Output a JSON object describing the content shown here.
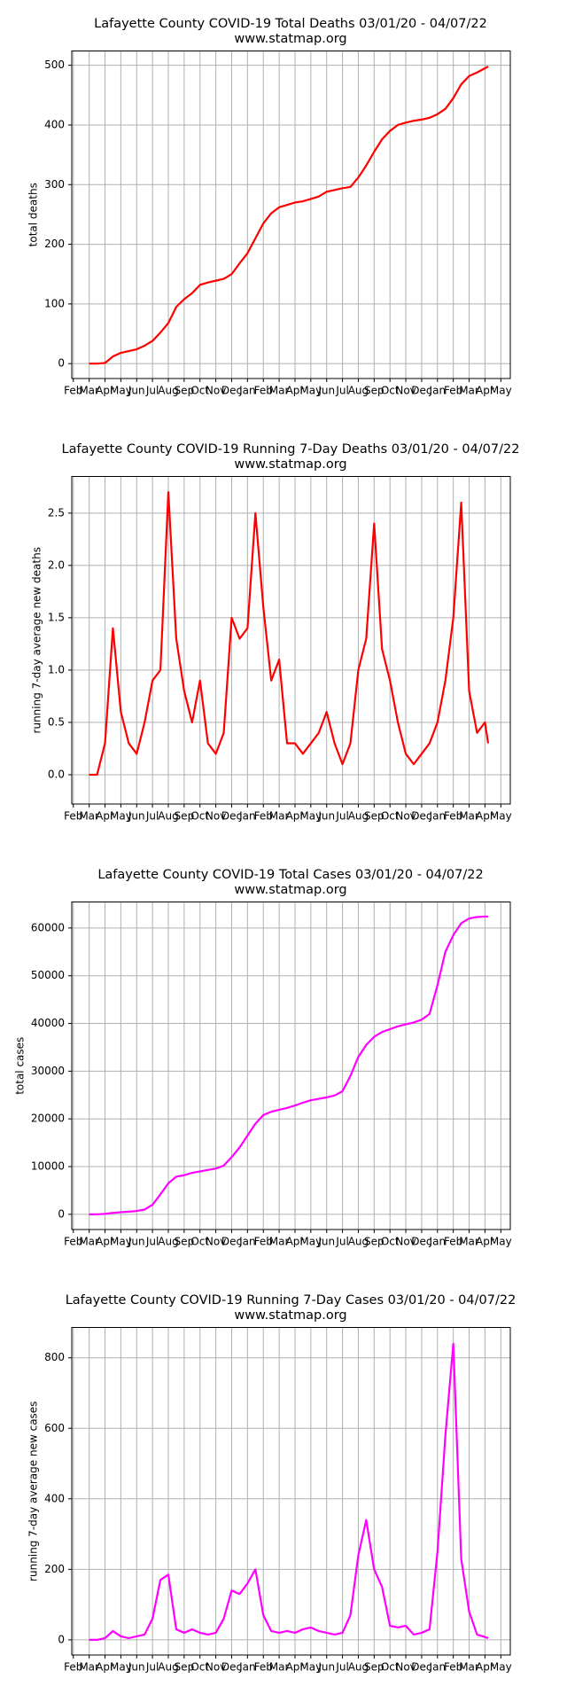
{
  "chart_data": [
    {
      "type": "line",
      "title": "Lafayette County COVID-19 Total Deaths 03/01/20 - 04/07/22",
      "subtitle": "www.statmap.org",
      "y_label": "total deaths",
      "color": "#ff0000",
      "grid": true,
      "x": [
        1,
        1.5,
        2,
        2.5,
        3,
        3.5,
        4,
        4.5,
        5,
        5.5,
        6,
        6.5,
        7,
        7.5,
        8,
        8.5,
        9,
        9.5,
        10,
        10.5,
        11,
        11.5,
        12,
        12.5,
        13,
        13.5,
        14,
        14.5,
        15,
        15.5,
        16,
        16.5,
        17,
        17.5,
        18,
        18.5,
        19,
        19.5,
        20,
        20.5,
        21,
        21.5,
        22,
        22.5,
        23,
        23.5,
        24,
        24.5,
        25,
        25.5,
        26,
        26.2
      ],
      "values": [
        0,
        0,
        1,
        12,
        18,
        21,
        24,
        30,
        38,
        52,
        68,
        95,
        108,
        118,
        132,
        136,
        139,
        142,
        150,
        168,
        185,
        210,
        235,
        252,
        262,
        266,
        270,
        272,
        276,
        280,
        288,
        291,
        294,
        296,
        312,
        332,
        355,
        376,
        390,
        400,
        404,
        407,
        409,
        412,
        418,
        427,
        445,
        468,
        482,
        488,
        495,
        498
      ],
      "xlim": [
        -0.1,
        27.6
      ],
      "ylim": [
        -25,
        524
      ],
      "yticks": [
        0,
        100,
        200,
        300,
        400,
        500
      ],
      "xticks": [
        {
          "value": 0,
          "label": "Feb"
        },
        {
          "value": 1,
          "label": "Mar"
        },
        {
          "value": 2,
          "label": "Apr"
        },
        {
          "value": 3,
          "label": "May"
        },
        {
          "value": 4,
          "label": "Jun"
        },
        {
          "value": 5,
          "label": "Jul"
        },
        {
          "value": 6,
          "label": "Aug"
        },
        {
          "value": 7,
          "label": "Sep"
        },
        {
          "value": 8,
          "label": "Oct"
        },
        {
          "value": 9,
          "label": "Nov"
        },
        {
          "value": 10,
          "label": "Dec"
        },
        {
          "value": 11,
          "label": "Jan"
        },
        {
          "value": 12,
          "label": "Feb"
        },
        {
          "value": 13,
          "label": "Mar"
        },
        {
          "value": 14,
          "label": "Apr"
        },
        {
          "value": 15,
          "label": "May"
        },
        {
          "value": 16,
          "label": "Jun"
        },
        {
          "value": 17,
          "label": "Jul"
        },
        {
          "value": 18,
          "label": "Aug"
        },
        {
          "value": 19,
          "label": "Sep"
        },
        {
          "value": 20,
          "label": "Oct"
        },
        {
          "value": 21,
          "label": "Nov"
        },
        {
          "value": 22,
          "label": "Dec"
        },
        {
          "value": 23,
          "label": "Jan"
        },
        {
          "value": 24,
          "label": "Feb"
        },
        {
          "value": 25,
          "label": "Mar"
        },
        {
          "value": 26,
          "label": "Apr"
        },
        {
          "value": 27,
          "label": "May"
        }
      ]
    },
    {
      "type": "line",
      "title": "Lafayette County COVID-19 Running 7-Day Deaths 03/01/20 - 04/07/22",
      "subtitle": "www.statmap.org",
      "y_label": "running 7-day average new deaths",
      "color": "#ff0000",
      "grid": true,
      "x": [
        1,
        1.5,
        2,
        2.5,
        3,
        3.5,
        4,
        4.5,
        5,
        5.5,
        6,
        6.5,
        7,
        7.5,
        8,
        8.5,
        9,
        9.5,
        10,
        10.5,
        11,
        11.5,
        12,
        12.5,
        13,
        13.5,
        14,
        14.5,
        15,
        15.5,
        16,
        16.5,
        17,
        17.5,
        18,
        18.5,
        19,
        19.5,
        20,
        20.5,
        21,
        21.5,
        22,
        22.5,
        23,
        23.5,
        24,
        24.5,
        25,
        25.5,
        26,
        26.2
      ],
      "values": [
        0,
        0,
        0.3,
        1.4,
        0.6,
        0.3,
        0.2,
        0.5,
        0.9,
        1.0,
        2.7,
        1.3,
        0.8,
        0.5,
        0.9,
        0.3,
        0.2,
        0.4,
        1.5,
        1.3,
        1.4,
        2.5,
        1.6,
        0.9,
        1.1,
        0.3,
        0.3,
        0.2,
        0.3,
        0.4,
        0.6,
        0.3,
        0.1,
        0.3,
        1.0,
        1.3,
        2.4,
        1.2,
        0.9,
        0.5,
        0.2,
        0.1,
        0.2,
        0.3,
        0.5,
        0.9,
        1.5,
        2.6,
        0.8,
        0.4,
        0.5,
        0.3
      ],
      "xlim": [
        -0.1,
        27.6
      ],
      "ylim": [
        -0.28,
        2.85
      ],
      "yticks": [
        {
          "value": 0,
          "label": "0.0"
        },
        0.5,
        {
          "value": 1,
          "label": "1.0"
        },
        1.5,
        {
          "value": 2,
          "label": "2.0"
        },
        2.5
      ],
      "xticks": [
        {
          "value": 0,
          "label": "Feb"
        },
        {
          "value": 1,
          "label": "Mar"
        },
        {
          "value": 2,
          "label": "Apr"
        },
        {
          "value": 3,
          "label": "May"
        },
        {
          "value": 4,
          "label": "Jun"
        },
        {
          "value": 5,
          "label": "Jul"
        },
        {
          "value": 6,
          "label": "Aug"
        },
        {
          "value": 7,
          "label": "Sep"
        },
        {
          "value": 8,
          "label": "Oct"
        },
        {
          "value": 9,
          "label": "Nov"
        },
        {
          "value": 10,
          "label": "Dec"
        },
        {
          "value": 11,
          "label": "Jan"
        },
        {
          "value": 12,
          "label": "Feb"
        },
        {
          "value": 13,
          "label": "Mar"
        },
        {
          "value": 14,
          "label": "Apr"
        },
        {
          "value": 15,
          "label": "May"
        },
        {
          "value": 16,
          "label": "Jun"
        },
        {
          "value": 17,
          "label": "Jul"
        },
        {
          "value": 18,
          "label": "Aug"
        },
        {
          "value": 19,
          "label": "Sep"
        },
        {
          "value": 20,
          "label": "Oct"
        },
        {
          "value": 21,
          "label": "Nov"
        },
        {
          "value": 22,
          "label": "Dec"
        },
        {
          "value": 23,
          "label": "Jan"
        },
        {
          "value": 24,
          "label": "Feb"
        },
        {
          "value": 25,
          "label": "Mar"
        },
        {
          "value": 26,
          "label": "Apr"
        },
        {
          "value": 27,
          "label": "May"
        }
      ]
    },
    {
      "type": "line",
      "title": "Lafayette County COVID-19 Total Cases 03/01/20 - 04/07/22",
      "subtitle": "www.statmap.org",
      "y_label": "total cases",
      "color": "#ff00ff",
      "grid": true,
      "x": [
        1,
        1.5,
        2,
        2.5,
        3,
        3.5,
        4,
        4.5,
        5,
        5.5,
        6,
        6.5,
        7,
        7.5,
        8,
        8.5,
        9,
        9.5,
        10,
        10.5,
        11,
        11.5,
        12,
        12.5,
        13,
        13.5,
        14,
        14.5,
        15,
        15.5,
        16,
        16.5,
        17,
        17.5,
        18,
        18.5,
        19,
        19.5,
        20,
        20.5,
        21,
        21.5,
        22,
        22.5,
        23,
        23.5,
        24,
        24.5,
        25,
        25.5,
        26,
        26.2
      ],
      "values": [
        0,
        0,
        100,
        300,
        450,
        550,
        700,
        1000,
        2000,
        4200,
        6500,
        7900,
        8200,
        8700,
        9000,
        9300,
        9600,
        10200,
        12000,
        14000,
        16500,
        19000,
        20800,
        21500,
        21900,
        22300,
        22800,
        23400,
        23900,
        24200,
        24500,
        24900,
        25800,
        29000,
        33000,
        35500,
        37200,
        38200,
        38800,
        39400,
        39800,
        40200,
        40800,
        42000,
        48000,
        55000,
        58500,
        61000,
        62000,
        62300,
        62400,
        62400
      ],
      "xlim": [
        -0.1,
        27.6
      ],
      "ylim": [
        -3182,
        65455
      ],
      "yticks": [
        0,
        10000,
        20000,
        30000,
        40000,
        50000,
        60000
      ],
      "xticks": [
        {
          "value": 0,
          "label": "Feb"
        },
        {
          "value": 1,
          "label": "Mar"
        },
        {
          "value": 2,
          "label": "Apr"
        },
        {
          "value": 3,
          "label": "May"
        },
        {
          "value": 4,
          "label": "Jun"
        },
        {
          "value": 5,
          "label": "Jul"
        },
        {
          "value": 6,
          "label": "Aug"
        },
        {
          "value": 7,
          "label": "Sep"
        },
        {
          "value": 8,
          "label": "Oct"
        },
        {
          "value": 9,
          "label": "Nov"
        },
        {
          "value": 10,
          "label": "Dec"
        },
        {
          "value": 11,
          "label": "Jan"
        },
        {
          "value": 12,
          "label": "Feb"
        },
        {
          "value": 13,
          "label": "Mar"
        },
        {
          "value": 14,
          "label": "Apr"
        },
        {
          "value": 15,
          "label": "May"
        },
        {
          "value": 16,
          "label": "Jun"
        },
        {
          "value": 17,
          "label": "Jul"
        },
        {
          "value": 18,
          "label": "Aug"
        },
        {
          "value": 19,
          "label": "Sep"
        },
        {
          "value": 20,
          "label": "Oct"
        },
        {
          "value": 21,
          "label": "Nov"
        },
        {
          "value": 22,
          "label": "Dec"
        },
        {
          "value": 23,
          "label": "Jan"
        },
        {
          "value": 24,
          "label": "Feb"
        },
        {
          "value": 25,
          "label": "Mar"
        },
        {
          "value": 26,
          "label": "Apr"
        },
        {
          "value": 27,
          "label": "May"
        }
      ]
    },
    {
      "type": "line",
      "title": "Lafayette County COVID-19 Running 7-Day Cases 03/01/20 - 04/07/22",
      "subtitle": "www.statmap.org",
      "y_label": "running 7-day average new cases",
      "color": "#ff00ff",
      "grid": true,
      "x": [
        1,
        1.5,
        2,
        2.5,
        3,
        3.5,
        4,
        4.5,
        5,
        5.5,
        6,
        6.5,
        7,
        7.5,
        8,
        8.5,
        9,
        9.5,
        10,
        10.5,
        11,
        11.5,
        12,
        12.5,
        13,
        13.5,
        14,
        14.5,
        15,
        15.5,
        16,
        16.5,
        17,
        17.5,
        18,
        18.5,
        19,
        19.5,
        20,
        20.5,
        21,
        21.5,
        22,
        22.5,
        23,
        23.5,
        24,
        24.5,
        25,
        25.5,
        26,
        26.2
      ],
      "values": [
        0,
        0,
        5,
        25,
        10,
        5,
        10,
        15,
        60,
        170,
        185,
        30,
        20,
        30,
        20,
        15,
        20,
        60,
        140,
        130,
        160,
        200,
        70,
        25,
        20,
        25,
        20,
        30,
        35,
        25,
        20,
        15,
        20,
        70,
        240,
        340,
        200,
        150,
        40,
        35,
        40,
        15,
        20,
        30,
        250,
        580,
        840,
        230,
        80,
        15,
        8,
        5
      ],
      "xlim": [
        -0.1,
        27.6
      ],
      "ylim": [
        -43,
        886
      ],
      "yticks": [
        0,
        200,
        400,
        600,
        800
      ],
      "xticks": [
        {
          "value": 0,
          "label": "Feb"
        },
        {
          "value": 1,
          "label": "Mar"
        },
        {
          "value": 2,
          "label": "Apr"
        },
        {
          "value": 3,
          "label": "May"
        },
        {
          "value": 4,
          "label": "Jun"
        },
        {
          "value": 5,
          "label": "Jul"
        },
        {
          "value": 6,
          "label": "Aug"
        },
        {
          "value": 7,
          "label": "Sep"
        },
        {
          "value": 8,
          "label": "Oct"
        },
        {
          "value": 9,
          "label": "Nov"
        },
        {
          "value": 10,
          "label": "Dec"
        },
        {
          "value": 11,
          "label": "Jan"
        },
        {
          "value": 12,
          "label": "Feb"
        },
        {
          "value": 13,
          "label": "Mar"
        },
        {
          "value": 14,
          "label": "Apr"
        },
        {
          "value": 15,
          "label": "May"
        },
        {
          "value": 16,
          "label": "Jun"
        },
        {
          "value": 17,
          "label": "Jul"
        },
        {
          "value": 18,
          "label": "Aug"
        },
        {
          "value": 19,
          "label": "Sep"
        },
        {
          "value": 20,
          "label": "Oct"
        },
        {
          "value": 21,
          "label": "Nov"
        },
        {
          "value": 22,
          "label": "Dec"
        },
        {
          "value": 23,
          "label": "Jan"
        },
        {
          "value": 24,
          "label": "Feb"
        },
        {
          "value": 25,
          "label": "Mar"
        },
        {
          "value": 26,
          "label": "Apr"
        },
        {
          "value": 27,
          "label": "May"
        }
      ]
    }
  ]
}
